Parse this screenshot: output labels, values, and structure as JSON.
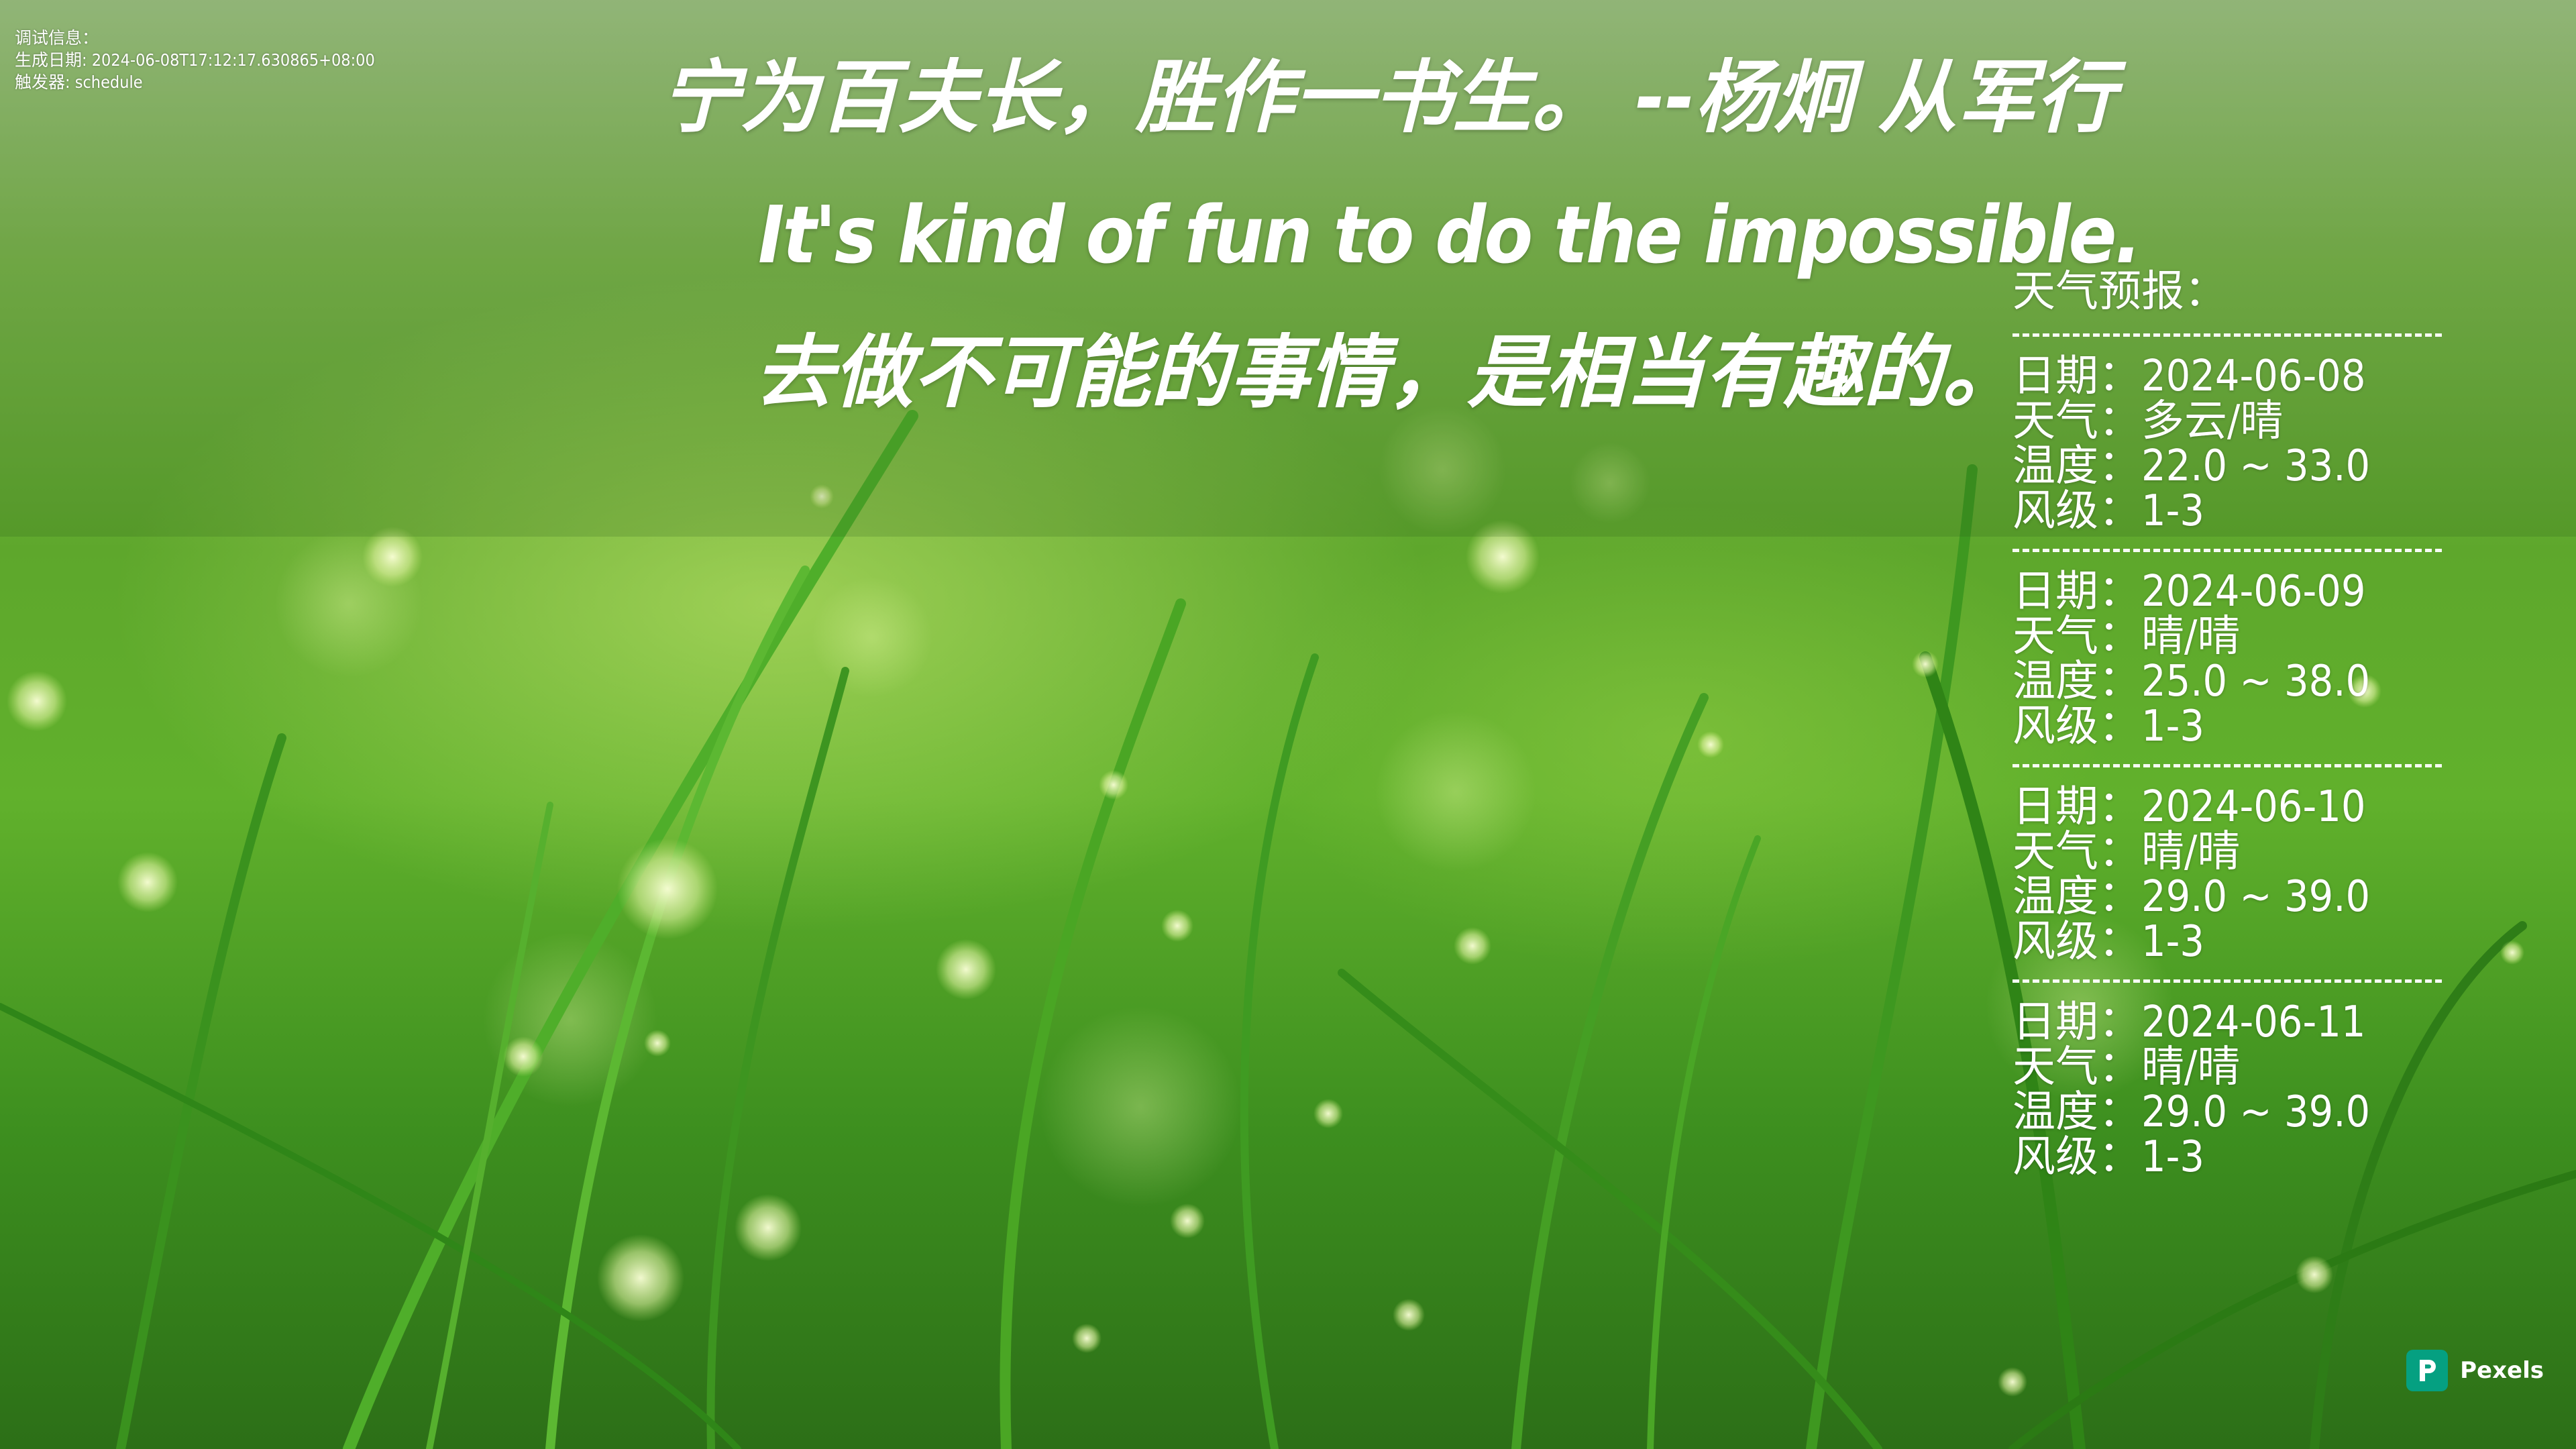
{
  "debug": {
    "line1": "调试信息：",
    "line2": "生成日期: 2024-06-08T17:12:17.630865+08:00",
    "line3": "触发器: schedule"
  },
  "quote": {
    "chinese": "宁为百夫长，胜作一书生。  --杨炯 从军行",
    "english": "It's kind of fun to do the impossible.",
    "english_translation": "去做不可能的事情，是相当有趣的。"
  },
  "weather": {
    "title": "天气预报：",
    "divider": "------------------------------",
    "days": [
      {
        "date": "日期：2024-06-08",
        "condition": "天气：多云/晴",
        "temperature": "温度：22.0 ~ 33.0",
        "wind": "风级：1-3"
      },
      {
        "date": "日期：2024-06-09",
        "condition": "天气：晴/晴",
        "temperature": "温度：25.0 ~ 38.0",
        "wind": "风级：1-3"
      },
      {
        "date": "日期：2024-06-10",
        "condition": "天气：晴/晴",
        "temperature": "温度：29.0 ~ 39.0",
        "wind": "风级：1-3"
      },
      {
        "date": "日期：2024-06-11",
        "condition": "天气：晴/晴",
        "temperature": "温度：29.0 ~ 39.0",
        "wind": "风级：1-3"
      }
    ]
  },
  "watermark": {
    "label": "Pexels",
    "icon": "pexels-logo-icon"
  },
  "colors": {
    "text": "#ffffff",
    "pexels_brand": "#05a081"
  }
}
